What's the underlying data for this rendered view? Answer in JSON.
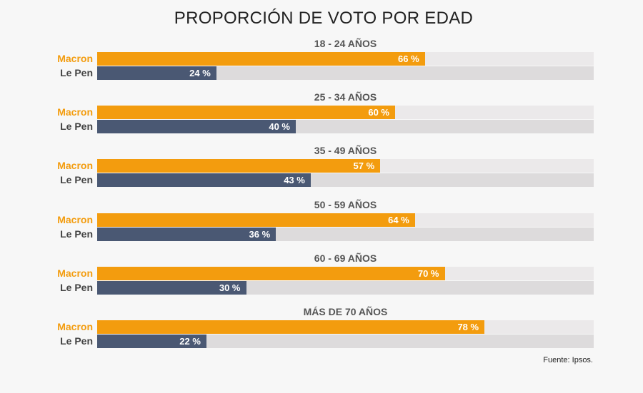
{
  "chart_data": {
    "type": "bar",
    "orientation": "horizontal",
    "title": "PROPORCIÓN DE VOTO POR EDAD",
    "categories": [
      "18 - 24 AÑOS",
      "25 - 34 AÑOS",
      "35 - 49 AÑOS",
      "50 - 59 AÑOS",
      "60 - 69 AÑOS",
      "MÁS DE 70 AÑOS"
    ],
    "series": [
      {
        "name": "Macron",
        "values": [
          66,
          60,
          57,
          64,
          70,
          78
        ],
        "color": "#f39c0e",
        "track_color": "#ebe9ea"
      },
      {
        "name": "Le Pen",
        "values": [
          24,
          40,
          43,
          36,
          30,
          22
        ],
        "color": "#4a5873",
        "track_color": "#dddbdc"
      }
    ],
    "value_suffix": " %",
    "xlim": [
      0,
      100
    ],
    "source": "Fuente: Ipsos."
  }
}
